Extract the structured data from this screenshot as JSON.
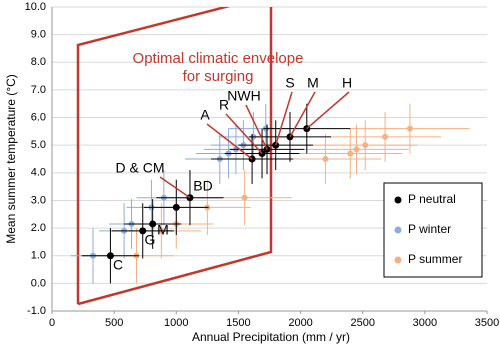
{
  "chart_data": {
    "type": "scatter",
    "x_label": "Annual Precipitation (mm / yr)",
    "y_label": "Mean summer temperature (°C)",
    "annotation": [
      "Optimal climatic envelope",
      "for surging"
    ],
    "xlim": [
      0,
      3500
    ],
    "xticks": [
      0,
      500,
      1000,
      1500,
      2000,
      2500,
      3000,
      3500
    ],
    "ylim": [
      -1,
      10
    ],
    "yticks": [
      {
        "value": -1,
        "label": "-1.0"
      },
      {
        "value": 0,
        "label": "0.0"
      },
      {
        "value": 1,
        "label": "1.0"
      },
      {
        "value": 2,
        "label": "2.0"
      },
      {
        "value": 3,
        "label": "3.0"
      },
      {
        "value": 4,
        "label": "4.0"
      },
      {
        "value": 5,
        "label": "5.0"
      },
      {
        "value": 6,
        "label": "6.0"
      },
      {
        "value": 7,
        "label": "7.0"
      },
      {
        "value": 8,
        "label": "8.0"
      },
      {
        "value": 9,
        "label": "9.0"
      },
      {
        "value": 10,
        "label": "10.0"
      }
    ],
    "grid": true,
    "legend": "lower right",
    "series": [
      {
        "name": "P neutral",
        "color": "#000000",
        "labels": [
          "C",
          "G",
          "M",
          "BD",
          "D & CM",
          "A",
          "R",
          "NWH",
          "S",
          "M",
          "H"
        ],
        "x": [
          470,
          730,
          810,
          1000,
          1110,
          1610,
          1690,
          1730,
          1800,
          1915,
          2050
        ],
        "values": [
          1.0,
          1.9,
          2.15,
          2.75,
          3.1,
          4.5,
          4.7,
          4.85,
          5.0,
          5.3,
          5.6
        ],
        "xerr": [
          230,
          250,
          230,
          260,
          270,
          330,
          300,
          300,
          300,
          330,
          350
        ],
        "yerr": [
          1.0,
          1.0,
          0.9,
          1.0,
          1.0,
          0.9,
          0.9,
          0.9,
          0.9,
          0.9,
          0.9
        ]
      },
      {
        "name": "P winter",
        "color": "#8faadc",
        "x": [
          330,
          580,
          640,
          800,
          900,
          1350,
          1420,
          1480,
          1540,
          1620,
          1720
        ],
        "values": [
          1.0,
          1.9,
          2.15,
          2.75,
          3.1,
          4.5,
          4.7,
          4.85,
          5.0,
          5.3,
          5.6
        ],
        "xerr": [
          180,
          200,
          180,
          200,
          220,
          280,
          260,
          260,
          260,
          280,
          300
        ],
        "yerr": [
          1.0,
          1.0,
          0.9,
          1.0,
          1.0,
          0.9,
          0.9,
          0.9,
          0.9,
          0.9,
          0.9
        ]
      },
      {
        "name": "P summer",
        "color": "#f4b183",
        "x": [
          680,
          880,
          1000,
          1250,
          1550,
          2200,
          2400,
          2450,
          2520,
          2680,
          2880
        ],
        "values": [
          1.0,
          1.9,
          2.15,
          2.75,
          3.1,
          4.5,
          4.7,
          4.85,
          5.0,
          5.3,
          5.6
        ],
        "xerr": [
          300,
          320,
          300,
          350,
          380,
          450,
          420,
          420,
          420,
          450,
          480
        ],
        "yerr": [
          1.0,
          1.0,
          0.9,
          1.0,
          1.0,
          0.9,
          0.9,
          0.9,
          0.9,
          0.9,
          0.9
        ]
      }
    ]
  }
}
